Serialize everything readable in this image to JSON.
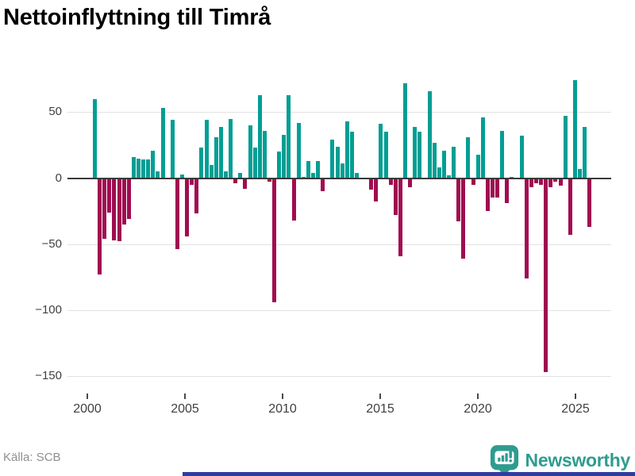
{
  "title": "Nettoinflyttning till Timrå",
  "source_label": "Källa: SCB",
  "brand": {
    "name": "Newsworthy",
    "icon": "bar-chart-speech-bubble"
  },
  "colors": {
    "positive_bar": "#009e94",
    "negative_bar": "#a00c50",
    "gridline": "#e2e2e2",
    "zero_line": "#3a3a3a",
    "axis_text": "#404040",
    "title_text": "#181818",
    "source_text": "#8f8f8f",
    "brand_teal": "#2f9c90",
    "bottom_accent": "#2e3d9e"
  },
  "chart_data": {
    "type": "bar",
    "title": "Nettoinflyttning till Timrå",
    "xlabel": "",
    "ylabel": "",
    "x_periods": {
      "start": "2000 Q1",
      "end": "2025 Q3",
      "step": "quarter"
    },
    "x_tick_years": [
      2000,
      2005,
      2010,
      2015,
      2020,
      2025
    ],
    "y_ticks": [
      50,
      0,
      -50,
      -100,
      -150
    ],
    "ylim": [
      -160,
      80
    ],
    "grid": true,
    "legend": false,
    "values": [
      60,
      -73,
      -46,
      -26,
      -47,
      -48,
      -35,
      -31,
      16,
      15,
      14,
      14,
      21,
      5,
      53,
      0,
      44,
      -54,
      3,
      -44,
      -5,
      -27,
      23,
      44,
      10,
      31,
      39,
      5,
      45,
      -4,
      4,
      -8,
      40,
      23,
      63,
      36,
      -3,
      -94,
      20,
      33,
      63,
      -32,
      42,
      1,
      13,
      4,
      13,
      -10,
      0,
      29,
      24,
      11,
      43,
      35,
      4,
      0,
      0,
      -9,
      -18,
      41,
      35,
      -5,
      -28,
      -59,
      72,
      -7,
      39,
      35,
      0,
      66,
      27,
      8,
      21,
      2,
      24,
      -33,
      -61,
      31,
      -5,
      18,
      46,
      -25,
      -15,
      -15,
      36,
      -19,
      1,
      0,
      32,
      -76,
      -7,
      -4,
      -5,
      -147,
      -7,
      -3,
      -6,
      47,
      -43,
      74,
      7,
      39,
      -37
    ]
  }
}
